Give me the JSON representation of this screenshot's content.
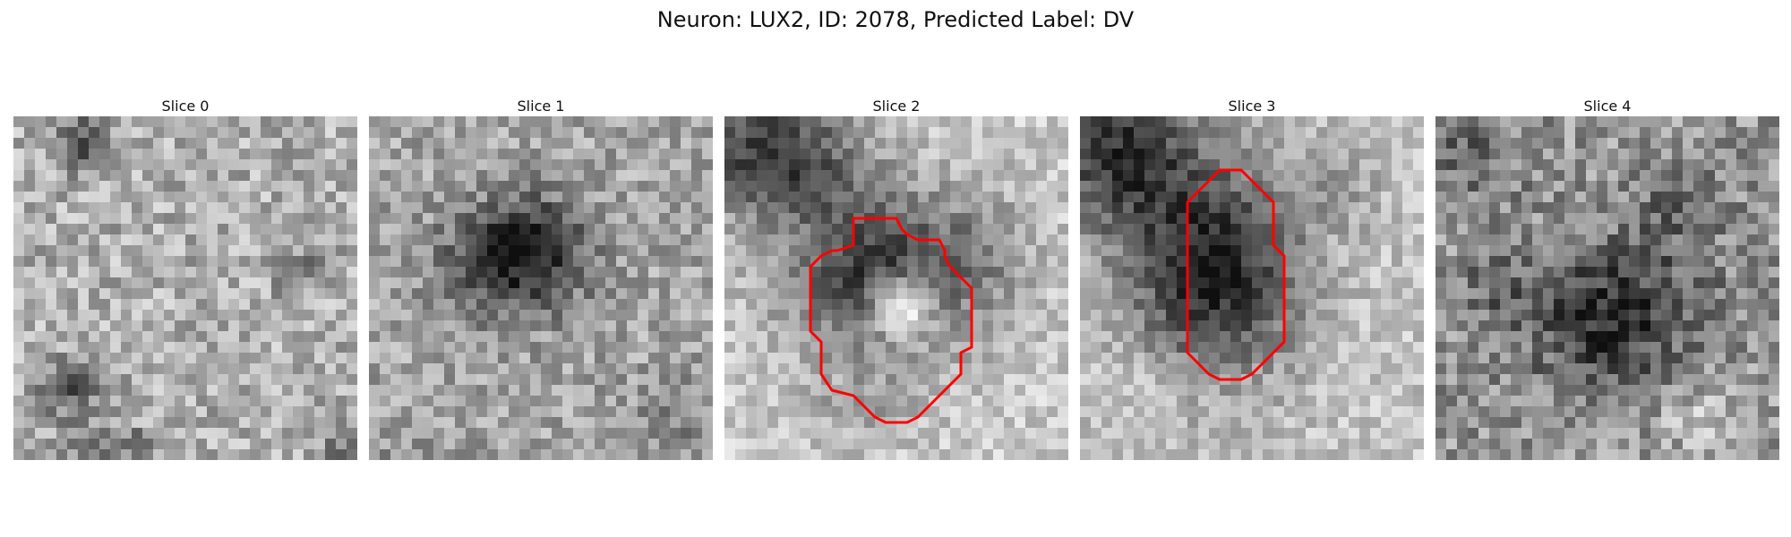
{
  "figure": {
    "title": "Neuron: LUX2, ID: 2078, Predicted Label: DV"
  },
  "panels": [
    {
      "title": "Slice 0",
      "has_contour": false
    },
    {
      "title": "Slice 1",
      "has_contour": false
    },
    {
      "title": "Slice 2",
      "has_contour": true
    },
    {
      "title": "Slice 3",
      "has_contour": true
    },
    {
      "title": "Slice 4",
      "has_contour": false
    }
  ],
  "colors": {
    "contour": "#ff0000",
    "background": "#ffffff"
  }
}
